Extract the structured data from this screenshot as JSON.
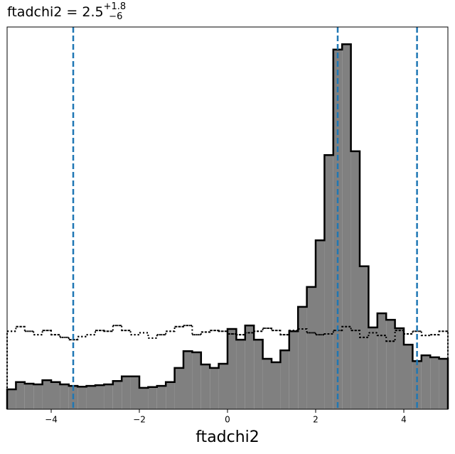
{
  "chart_data": {
    "type": "histogram",
    "title": "ftadchi2 = 2.5",
    "title_sup": "+1.8",
    "title_sub": "−6",
    "xlabel": "ftadchi2",
    "bins": [
      -5,
      -4.8,
      -4.6,
      -4.4,
      -4.2,
      -4,
      -3.8,
      -3.6,
      -3.4,
      -3.2,
      -3,
      -2.8,
      -2.6,
      -2.4,
      -2.2,
      -2,
      -1.8,
      -1.6,
      -1.4,
      -1.2,
      -1,
      -0.8,
      -0.6,
      -0.4,
      -0.2,
      0,
      0.2,
      0.4,
      0.6,
      0.8,
      1,
      1.2,
      1.4,
      1.6,
      1.8,
      2,
      2.2,
      2.4,
      2.6,
      2.8,
      3,
      3.2,
      3.4,
      3.6,
      3.8,
      4,
      4.2,
      4.4,
      4.6,
      4.8,
      5
    ],
    "series": [
      {
        "color": "#808080",
        "edgecolor": "#000000",
        "filled": true,
        "values": [
          5.2,
          7.1,
          6.7,
          6.5,
          7.6,
          7.1,
          6.5,
          6.1,
          5.9,
          6.1,
          6.3,
          6.5,
          7.4,
          8.6,
          8.6,
          5.6,
          5.8,
          6.1,
          7.1,
          10.8,
          15.2,
          14.9,
          11.7,
          10.8,
          11.9,
          21.0,
          18.2,
          21.9,
          18.2,
          13.2,
          12.3,
          15.4,
          20.4,
          26.8,
          32.0,
          44.2,
          66.5,
          94.1,
          95.5,
          67.5,
          37.4,
          21.4,
          25.1,
          23.4,
          21.2,
          16.9,
          12.6,
          14.1,
          13.6,
          13.2
        ]
      },
      {
        "color": "#000000",
        "filled": false,
        "linestyle": "dotted",
        "values": [
          20.4,
          21.6,
          20.4,
          19.5,
          20.6,
          19.5,
          18.8,
          18.2,
          19.0,
          19.5,
          20.6,
          20.4,
          21.9,
          20.6,
          19.5,
          20.0,
          18.6,
          19.5,
          20.4,
          21.6,
          21.9,
          19.5,
          20.2,
          20.6,
          20.4,
          19.7,
          19.5,
          20.0,
          20.4,
          21.2,
          20.6,
          19.5,
          20.6,
          21.0,
          20.0,
          19.5,
          19.7,
          20.6,
          21.6,
          20.6,
          18.8,
          20.0,
          19.3,
          17.8,
          20.6,
          19.7,
          20.4,
          19.3,
          19.5,
          20.4
        ]
      }
    ],
    "vlines": [
      -3.5,
      2.5,
      4.3
    ],
    "vline_color": "#1f77b4",
    "xlim": [
      -5,
      5
    ],
    "ylim": [
      0,
      100
    ],
    "xticks": [
      {
        "value": -4,
        "label": "−4"
      },
      {
        "value": -2,
        "label": "−2"
      },
      0,
      2,
      4
    ]
  }
}
